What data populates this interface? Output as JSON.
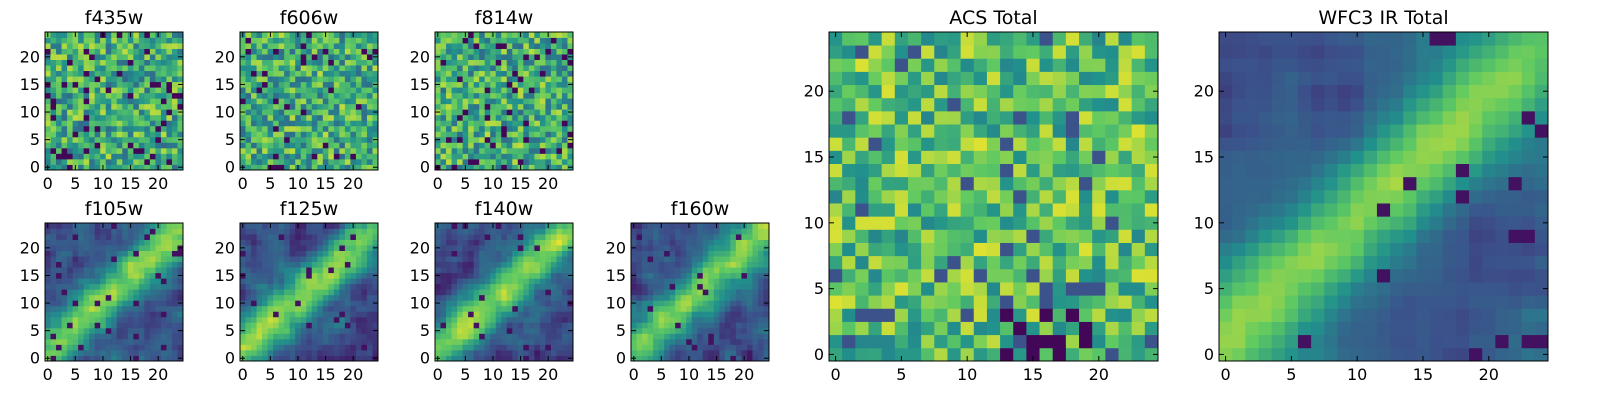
{
  "figure": {
    "colormap": [
      "#440154",
      "#3b528b",
      "#21918c",
      "#5ec962",
      "#fde725"
    ]
  },
  "chart_data": [
    {
      "type": "heatmap",
      "title": "f435w",
      "grid_size": 25,
      "xticks": [
        0,
        5,
        10,
        15,
        20
      ],
      "yticks": [
        0,
        5,
        10,
        15,
        20
      ],
      "xlim": [
        -0.5,
        24.5
      ],
      "ylim": [
        -0.5,
        24.5
      ],
      "pattern": "noise",
      "seed": 11
    },
    {
      "type": "heatmap",
      "title": "f606w",
      "grid_size": 25,
      "xticks": [
        0,
        5,
        10,
        15,
        20
      ],
      "yticks": [
        0,
        5,
        10,
        15,
        20
      ],
      "xlim": [
        -0.5,
        24.5
      ],
      "ylim": [
        -0.5,
        24.5
      ],
      "pattern": "noise",
      "seed": 23
    },
    {
      "type": "heatmap",
      "title": "f814w",
      "grid_size": 25,
      "xticks": [
        0,
        5,
        10,
        15,
        20
      ],
      "yticks": [
        0,
        5,
        10,
        15,
        20
      ],
      "xlim": [
        -0.5,
        24.5
      ],
      "ylim": [
        -0.5,
        24.5
      ],
      "pattern": "noise",
      "seed": 37
    },
    {
      "type": "heatmap",
      "title": "f105w",
      "grid_size": 25,
      "xticks": [
        0,
        5,
        10,
        15,
        20
      ],
      "yticks": [
        0,
        5,
        10,
        15,
        20
      ],
      "xlim": [
        -0.5,
        24.5
      ],
      "ylim": [
        -0.5,
        24.5
      ],
      "pattern": "diagonal",
      "seed": 41
    },
    {
      "type": "heatmap",
      "title": "f125w",
      "grid_size": 25,
      "xticks": [
        0,
        5,
        10,
        15,
        20
      ],
      "yticks": [
        0,
        5,
        10,
        15,
        20
      ],
      "xlim": [
        -0.5,
        24.5
      ],
      "ylim": [
        -0.5,
        24.5
      ],
      "pattern": "diagonal",
      "seed": 53
    },
    {
      "type": "heatmap",
      "title": "f140w",
      "grid_size": 25,
      "xticks": [
        0,
        5,
        10,
        15,
        20
      ],
      "yticks": [
        0,
        5,
        10,
        15,
        20
      ],
      "xlim": [
        -0.5,
        24.5
      ],
      "ylim": [
        -0.5,
        24.5
      ],
      "pattern": "diagonal",
      "seed": 67
    },
    {
      "type": "heatmap",
      "title": "f160w",
      "grid_size": 25,
      "xticks": [
        0,
        5,
        10,
        15,
        20
      ],
      "yticks": [
        0,
        5,
        10,
        15,
        20
      ],
      "xlim": [
        -0.5,
        24.5
      ],
      "ylim": [
        -0.5,
        24.5
      ],
      "pattern": "diagonal",
      "seed": 79
    },
    {
      "type": "heatmap",
      "title": "ACS Total",
      "grid_size": 25,
      "xticks": [
        0,
        5,
        10,
        15,
        20
      ],
      "yticks": [
        0,
        5,
        10,
        15,
        20
      ],
      "xlim": [
        -0.5,
        24.5
      ],
      "ylim": [
        -0.5,
        24.5
      ],
      "pattern": "noise_bright",
      "seed": 97
    },
    {
      "type": "heatmap",
      "title": "WFC3 IR Total",
      "grid_size": 25,
      "xticks": [
        0,
        5,
        10,
        15,
        20
      ],
      "yticks": [
        0,
        5,
        10,
        15,
        20
      ],
      "xlim": [
        -0.5,
        24.5
      ],
      "ylim": [
        -0.5,
        24.5
      ],
      "pattern": "diagonal_smooth",
      "seed": 103
    }
  ]
}
